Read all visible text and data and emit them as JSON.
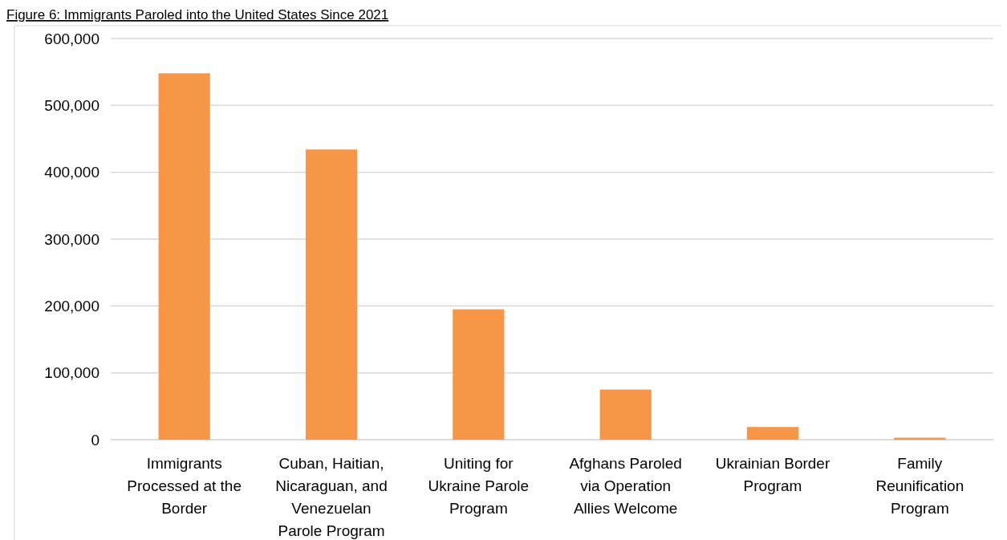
{
  "chart_data": {
    "type": "bar",
    "title": "Figure 6: Immigrants Paroled into the United States Since 2021",
    "categories": [
      "Immigrants Processed at the Border",
      "Cuban, Haitian, Nicaraguan, and Venezuelan Parole Program",
      "Uniting for Ukraine Parole Program",
      "Afghans Paroled via Operation Allies Welcome",
      "Ukrainian Border Program",
      "Family Reunification Program"
    ],
    "values": [
      548000,
      434000,
      195000,
      75000,
      19000,
      3000
    ],
    "color": "#f79646",
    "ylim": [
      0,
      600000
    ],
    "yticks": [
      {
        "value": 0,
        "label": "0"
      },
      {
        "value": 100000,
        "label": "100,000"
      },
      {
        "value": 200000,
        "label": "200,000"
      },
      {
        "value": 300000,
        "label": "300,000"
      },
      {
        "value": 400000,
        "label": "400,000"
      },
      {
        "value": 500000,
        "label": "500,000"
      },
      {
        "value": 600000,
        "label": "600,000"
      }
    ],
    "grid": "y"
  }
}
